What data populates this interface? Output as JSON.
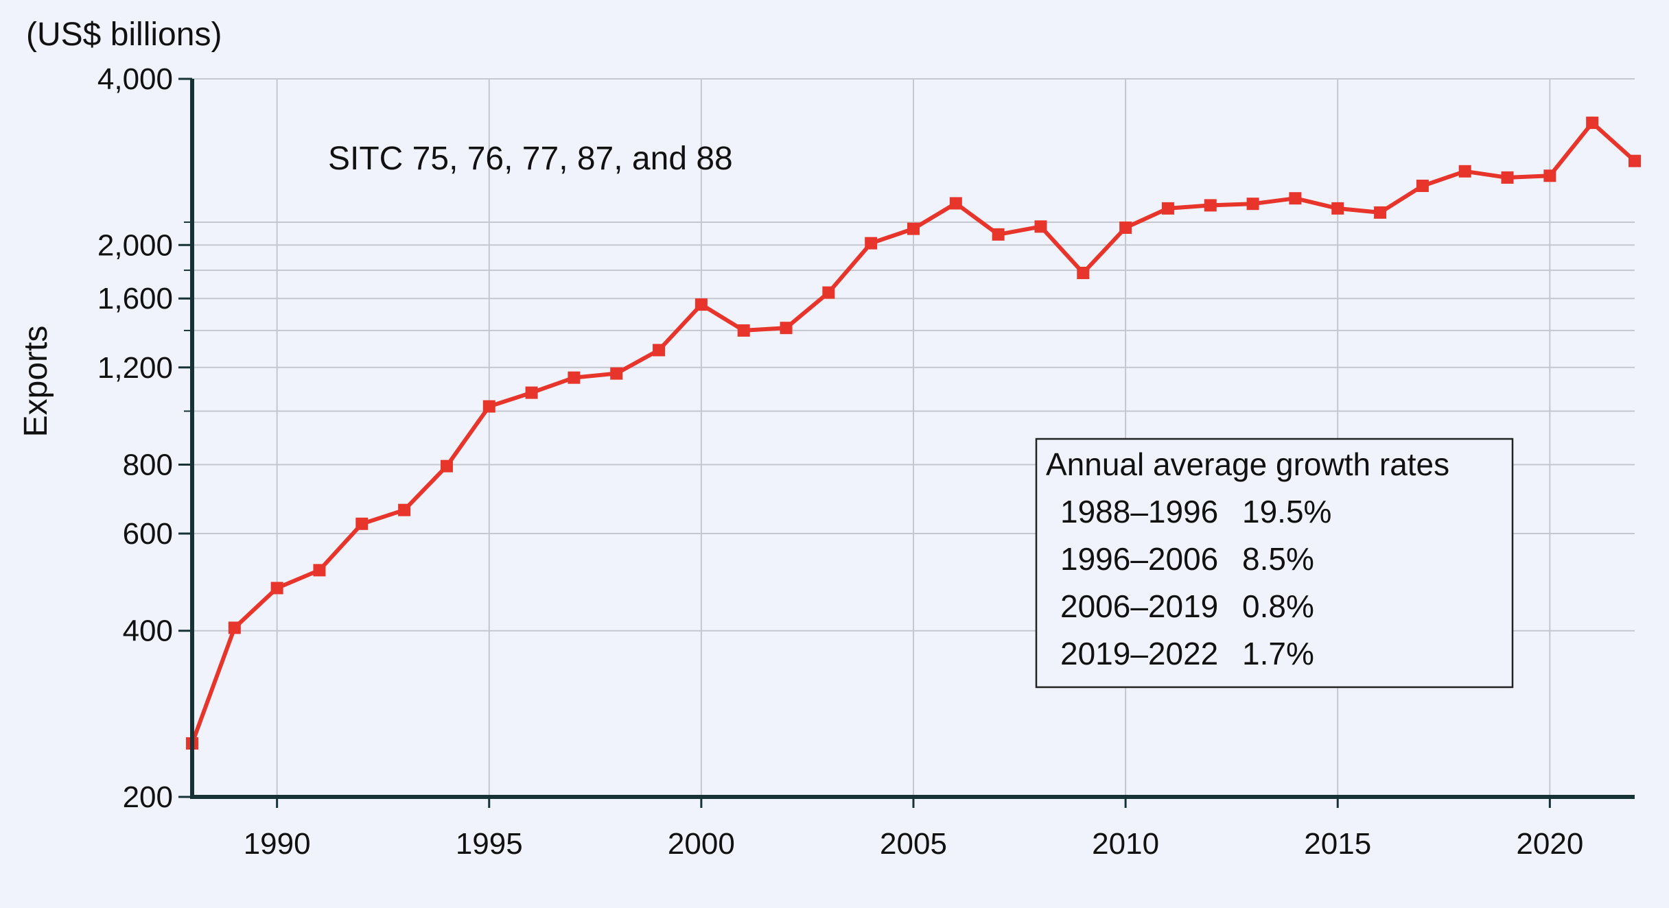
{
  "chart_data": {
    "type": "line",
    "unit_label": "(US$ billions)",
    "ylabel": "Exports",
    "xlabel": "",
    "y_scale": "log",
    "ylim": [
      200,
      4000
    ],
    "xlim": [
      1988,
      2022
    ],
    "y_ticks": [
      {
        "value": 200,
        "label": "200"
      },
      {
        "value": 400,
        "label": "400"
      },
      {
        "value": 600,
        "label": "600"
      },
      {
        "value": 800,
        "label": "800"
      },
      {
        "value": 1200,
        "label": "1,200"
      },
      {
        "value": 1600,
        "label": "1,600"
      },
      {
        "value": 2000,
        "label": "2,000"
      },
      {
        "value": 4000,
        "label": "4,000"
      }
    ],
    "y_minor_ticks": [
      1000,
      1400,
      1800,
      2200
    ],
    "x_ticks": [
      1990,
      1995,
      2000,
      2005,
      2010,
      2015,
      2020
    ],
    "grid": true,
    "annotation": "SITC 75, 76, 77, 87, and 88",
    "legend_box": {
      "title": "Annual average growth rates",
      "rows": [
        {
          "period": "1988–1996",
          "rate": "19.5%"
        },
        {
          "period": "1996–2006",
          "rate": "8.5%"
        },
        {
          "period": "2006–2019",
          "rate": "0.8%"
        },
        {
          "period": "2019–2022",
          "rate": "1.7%"
        }
      ]
    },
    "series": [
      {
        "color": "#e8352b",
        "x": [
          1988,
          1989,
          1990,
          1991,
          1992,
          1993,
          1994,
          1995,
          1996,
          1997,
          1998,
          1999,
          2000,
          2001,
          2002,
          2003,
          2004,
          2005,
          2006,
          2007,
          2008,
          2009,
          2010,
          2011,
          2012,
          2013,
          2014,
          2015,
          2016,
          2017,
          2018,
          2019,
          2020,
          2021,
          2022
        ],
        "values": [
          250,
          405,
          478,
          515,
          625,
          662,
          795,
          1020,
          1080,
          1150,
          1170,
          1290,
          1560,
          1400,
          1415,
          1640,
          2015,
          2140,
          2380,
          2090,
          2160,
          1780,
          2150,
          2330,
          2360,
          2375,
          2430,
          2330,
          2290,
          2560,
          2720,
          2650,
          2670,
          3330,
          2840
        ]
      }
    ]
  }
}
